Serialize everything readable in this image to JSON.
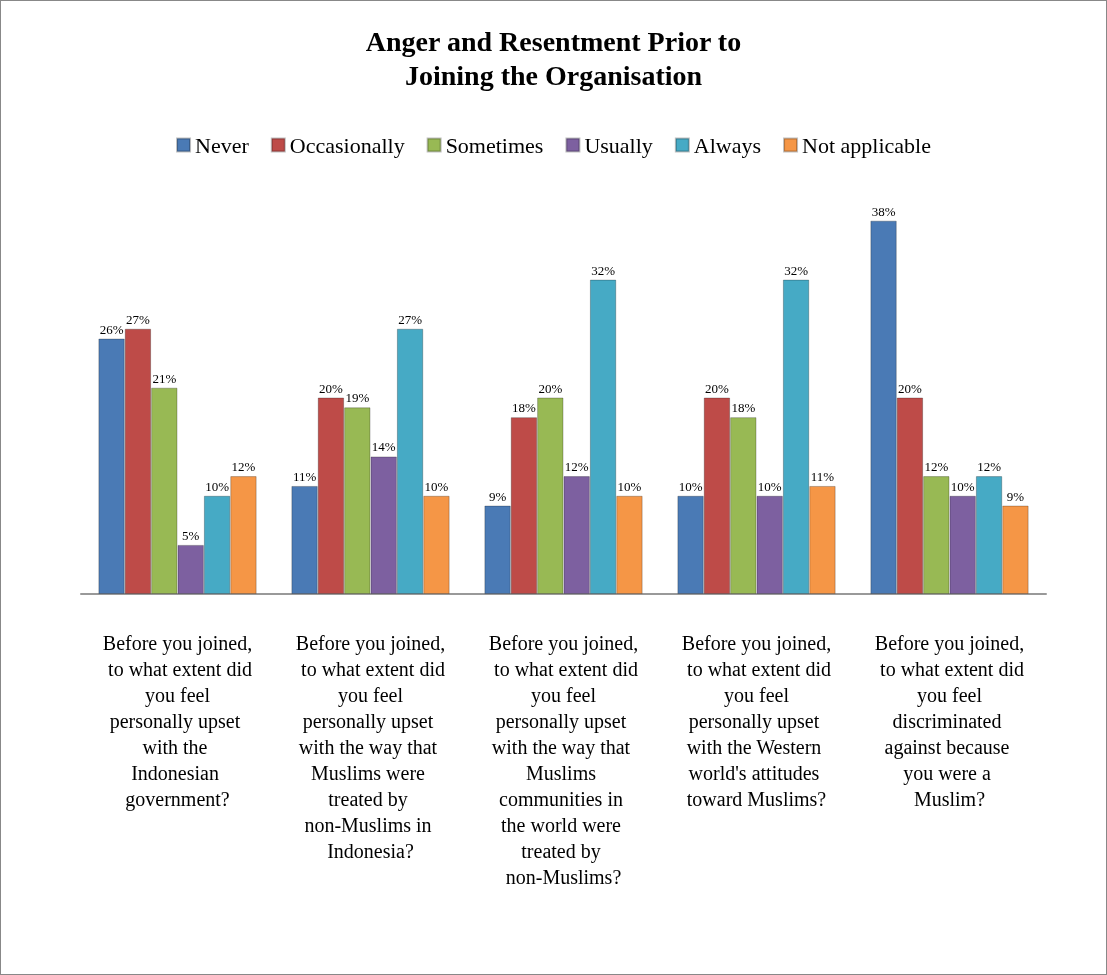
{
  "chart_data": {
    "type": "bar",
    "title": "Anger and Resentment Prior to\nJoining the Organisation",
    "categories": [
      "Before you joined, to what extent did you feel personally upset with the Indonesian government?",
      "Before you joined, to what extent did you feel personally upset with the way that Muslims were treated by non-Muslims in Indonesia?",
      "Before you joined, to what extent did you feel personally upset with the way that Muslims communities in the world were treated by non-Muslims?",
      "Before you joined, to what extent did you feel personally upset with the Western world's attitudes toward Muslims?",
      "Before you joined, to what extent did you feel discriminated against because you were a Muslim?"
    ],
    "series": [
      {
        "name": "Never",
        "color": "#4a7ab5",
        "values": [
          26,
          11,
          9,
          10,
          38
        ],
        "value_labels": [
          "26%",
          "11%",
          "9%",
          "10%",
          "38%"
        ]
      },
      {
        "name": "Occasionally",
        "color": "#be4b48",
        "values": [
          27,
          20,
          18,
          20,
          20
        ],
        "value_labels": [
          "27%",
          "20%",
          "18%",
          "20%",
          "20%"
        ]
      },
      {
        "name": "Sometimes",
        "color": "#98b954",
        "values": [
          21,
          19,
          20,
          18,
          12
        ],
        "value_labels": [
          "21%",
          "19%",
          "20%",
          "18%",
          "12%"
        ]
      },
      {
        "name": "Usually",
        "color": "#7d60a0",
        "values": [
          5,
          14,
          12,
          10,
          10
        ],
        "value_labels": [
          "5%",
          "14%",
          "12%",
          "10%",
          "10%"
        ]
      },
      {
        "name": "Always",
        "color": "#46aac5",
        "values": [
          10,
          27,
          32,
          32,
          12
        ],
        "value_labels": [
          "10%",
          "27%",
          "32%",
          "32%",
          "12%"
        ]
      },
      {
        "name": "Not applicable",
        "color": "#f59646",
        "values": [
          12,
          10,
          10,
          11,
          9
        ],
        "value_labels": [
          "12%",
          "10%",
          "10%",
          "11%",
          "9%"
        ]
      }
    ],
    "legend": "top"
  }
}
